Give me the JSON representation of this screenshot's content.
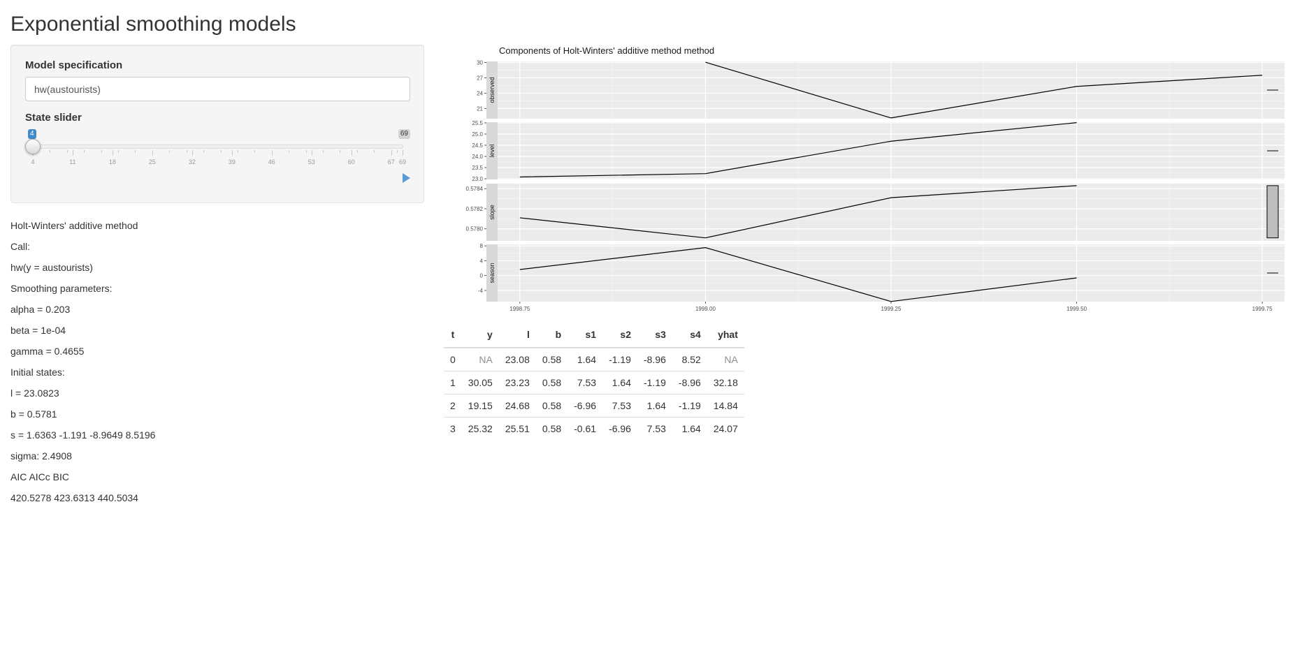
{
  "page": {
    "title": "Exponential smoothing models"
  },
  "sidebar": {
    "model_spec_label": "Model specification",
    "model_spec_value": "hw(austourists)",
    "slider_label": "State slider",
    "slider": {
      "min": 4,
      "max": 69,
      "value": 4,
      "from_label": "4",
      "max_label": "69",
      "tick_labels": [
        "4",
        "11",
        "18",
        "25",
        "32",
        "39",
        "46",
        "53",
        "60",
        "67",
        "69"
      ],
      "play_icon": "play-icon",
      "accent_color": "#428bca"
    }
  },
  "summary": {
    "lines": [
      "Holt-Winters' additive method",
      "Call:",
      "hw(y = austourists)",
      "Smoothing parameters:",
      "alpha = 0.203",
      "beta = 1e-04",
      "gamma = 0.4655",
      "Initial states:",
      "l = 23.0823",
      "b = 0.5781",
      "s = 1.6363 -1.191 -8.9649 8.5196",
      "sigma: 2.4908",
      "AIC AICc BIC",
      "420.5278 423.6313 440.5034"
    ]
  },
  "chart_data": {
    "type": "line",
    "title": "Components of Holt-Winters' additive method method",
    "x_tick_labels": [
      "1998.75",
      "1999.00",
      "1999.25",
      "1999.50",
      "1999.75"
    ],
    "xlim": [
      1998.72,
      1999.78
    ],
    "grid": true,
    "panels": [
      {
        "name": "observed",
        "ylim": [
          19.0,
          30.2
        ],
        "y_ticks": [
          21,
          24,
          27,
          30
        ],
        "x": [
          1999.0,
          1999.25,
          1999.5,
          1999.75
        ],
        "values": [
          30.05,
          19.15,
          25.32,
          27.5
        ],
        "bar_range": null
      },
      {
        "name": "level",
        "ylim": [
          22.97,
          25.53
        ],
        "y_ticks": [
          23.0,
          23.5,
          24.0,
          24.5,
          25.0,
          25.5
        ],
        "y_tick_labels": [
          "23.0",
          "23.5",
          "24.0",
          "24.5",
          "25.0",
          "25.5"
        ],
        "x": [
          1998.75,
          1999.0,
          1999.25,
          1999.5
        ],
        "values": [
          23.08,
          23.23,
          24.68,
          25.51
        ],
        "bar_range": null
      },
      {
        "name": "slope",
        "ylim": [
          0.57788,
          0.57845
        ],
        "y_ticks": [
          0.578,
          0.5782,
          0.5784
        ],
        "y_tick_labels": [
          "0.5780",
          "0.5782",
          "0.5784"
        ],
        "x": [
          1998.75,
          1999.0,
          1999.25,
          1999.5
        ],
        "values": [
          0.57811,
          0.57791,
          0.57831,
          0.57843
        ],
        "bar_range": [
          0.57791,
          0.57843
        ]
      },
      {
        "name": "season",
        "ylim": [
          -7.0,
          8.4
        ],
        "y_ticks": [
          -4,
          0,
          4,
          8
        ],
        "x": [
          1998.75,
          1999.0,
          1999.25,
          1999.5
        ],
        "values": [
          1.64,
          7.53,
          -6.96,
          -0.61
        ],
        "bar_range": null
      }
    ]
  },
  "table": {
    "headers": [
      "t",
      "y",
      "l",
      "b",
      "s1",
      "s2",
      "s3",
      "s4",
      "yhat"
    ],
    "rows": [
      [
        "0",
        "NA",
        "23.08",
        "0.58",
        "1.64",
        "-1.19",
        "-8.96",
        "8.52",
        "NA"
      ],
      [
        "1",
        "30.05",
        "23.23",
        "0.58",
        "7.53",
        "1.64",
        "-1.19",
        "-8.96",
        "32.18"
      ],
      [
        "2",
        "19.15",
        "24.68",
        "0.58",
        "-6.96",
        "7.53",
        "1.64",
        "-1.19",
        "14.84"
      ],
      [
        "3",
        "25.32",
        "25.51",
        "0.58",
        "-0.61",
        "-6.96",
        "7.53",
        "1.64",
        "24.07"
      ]
    ],
    "na_color": "#909090"
  }
}
